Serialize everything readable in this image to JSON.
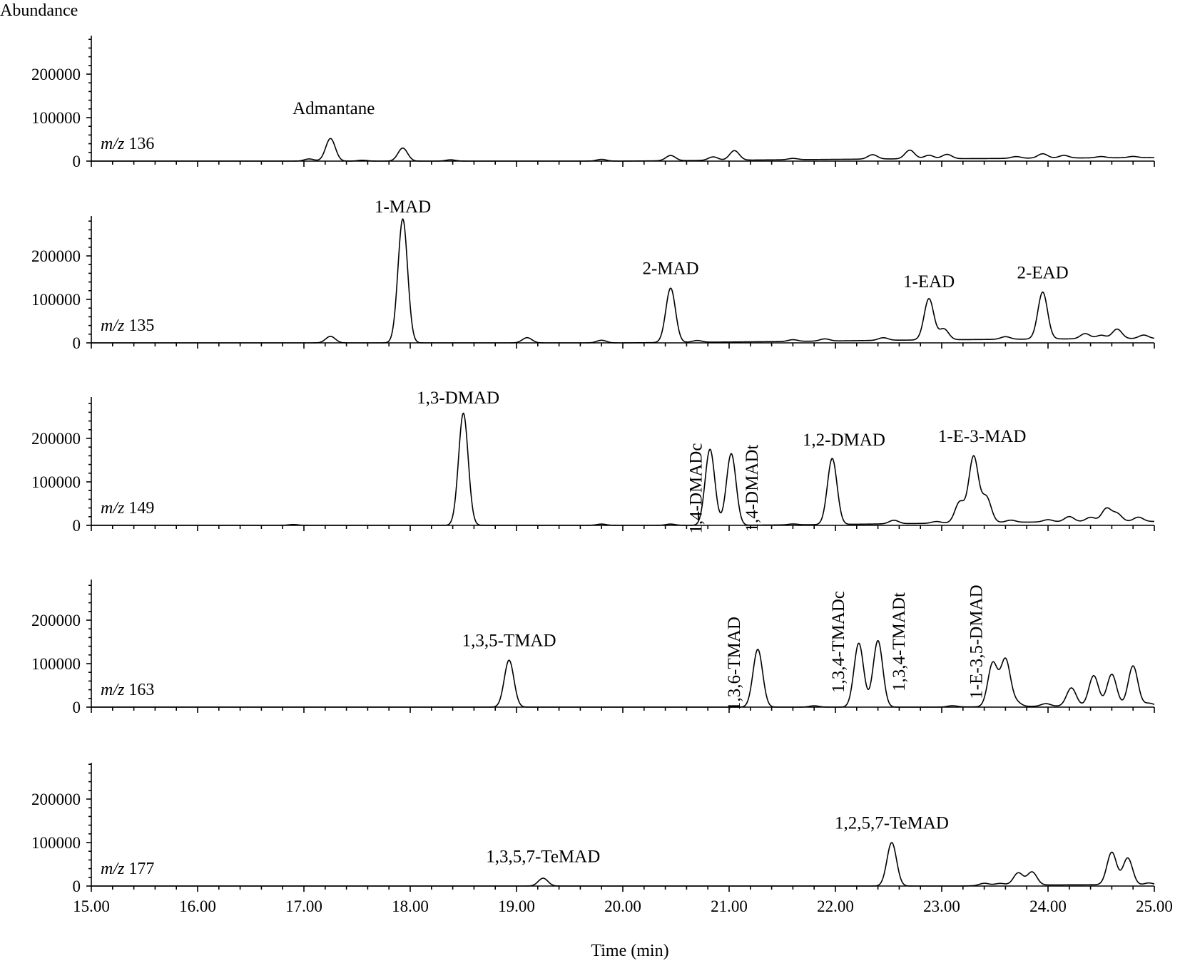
{
  "chart_data": {
    "type": "line",
    "ylabel": "Abundance",
    "xlabel": "Time (min)",
    "xlim": [
      15.0,
      25.0
    ],
    "x_ticks": [
      "15.00",
      "16.00",
      "17.00",
      "18.00",
      "19.00",
      "20.00",
      "21.00",
      "22.00",
      "23.00",
      "24.00",
      "25.00"
    ],
    "y_ticks": [
      "0",
      "100000",
      "200000"
    ],
    "ylim": [
      0,
      290000
    ],
    "peak_width_min": 0.045,
    "panels": [
      {
        "mz_prefix": "m/z",
        "mz_value": "136",
        "baseline": [
          [
            15.0,
            0
          ],
          [
            20.0,
            0
          ],
          [
            21.5,
            3000
          ],
          [
            22.5,
            5000
          ],
          [
            23.5,
            6000
          ],
          [
            24.0,
            7000
          ],
          [
            25.0,
            8000
          ]
        ],
        "peaks": [
          {
            "x": 17.05,
            "y": 5000,
            "label": ""
          },
          {
            "x": 17.25,
            "y": 52000,
            "label": "Admantane",
            "label_orient": "h",
            "label_x": 17.28,
            "label_y": 108000
          },
          {
            "x": 17.55,
            "y": 2000,
            "label": ""
          },
          {
            "x": 17.93,
            "y": 30000,
            "label": ""
          },
          {
            "x": 18.38,
            "y": 3000,
            "label": ""
          },
          {
            "x": 19.8,
            "y": 4000,
            "label": ""
          },
          {
            "x": 20.45,
            "y": 12000,
            "label": ""
          },
          {
            "x": 20.85,
            "y": 8000,
            "label": ""
          },
          {
            "x": 21.05,
            "y": 22000,
            "label": ""
          },
          {
            "x": 21.6,
            "y": 3000,
            "label": ""
          },
          {
            "x": 22.35,
            "y": 10000,
            "label": ""
          },
          {
            "x": 22.7,
            "y": 20000,
            "label": ""
          },
          {
            "x": 22.88,
            "y": 8000,
            "label": ""
          },
          {
            "x": 23.05,
            "y": 10000,
            "label": ""
          },
          {
            "x": 23.7,
            "y": 4000,
            "label": ""
          },
          {
            "x": 23.95,
            "y": 10000,
            "label": ""
          },
          {
            "x": 24.15,
            "y": 6000,
            "label": ""
          },
          {
            "x": 24.5,
            "y": 3000,
            "label": ""
          },
          {
            "x": 24.8,
            "y": 3000,
            "label": ""
          }
        ]
      },
      {
        "mz_prefix": "m/z",
        "mz_value": "135",
        "baseline": [
          [
            15.0,
            0
          ],
          [
            20.0,
            0
          ],
          [
            21.5,
            3000
          ],
          [
            22.5,
            6000
          ],
          [
            23.5,
            8000
          ],
          [
            24.0,
            9000
          ],
          [
            25.0,
            10000
          ]
        ],
        "peaks": [
          {
            "x": 17.25,
            "y": 15000,
            "label": ""
          },
          {
            "x": 17.93,
            "y": 285000,
            "label": "1-MAD",
            "label_orient": "h",
            "label_x": 17.93,
            "label_y": 300000
          },
          {
            "x": 19.1,
            "y": 12000,
            "label": ""
          },
          {
            "x": 19.8,
            "y": 6000,
            "label": ""
          },
          {
            "x": 20.45,
            "y": 125000,
            "label": "2-MAD",
            "label_orient": "h",
            "label_x": 20.45,
            "label_y": 158000
          },
          {
            "x": 20.7,
            "y": 4000,
            "label": ""
          },
          {
            "x": 21.6,
            "y": 4000,
            "label": ""
          },
          {
            "x": 21.9,
            "y": 5000,
            "label": ""
          },
          {
            "x": 22.45,
            "y": 6000,
            "label": ""
          },
          {
            "x": 22.88,
            "y": 95000,
            "label": "1-EAD",
            "label_orient": "h",
            "label_x": 22.88,
            "label_y": 128000
          },
          {
            "x": 23.02,
            "y": 25000,
            "label": ""
          },
          {
            "x": 23.6,
            "y": 6000,
            "label": ""
          },
          {
            "x": 23.95,
            "y": 108000,
            "label": "2-EAD",
            "label_orient": "h",
            "label_x": 23.95,
            "label_y": 148000
          },
          {
            "x": 24.35,
            "y": 12000,
            "label": ""
          },
          {
            "x": 24.5,
            "y": 8000,
            "label": ""
          },
          {
            "x": 24.65,
            "y": 22000,
            "label": ""
          },
          {
            "x": 24.9,
            "y": 8000,
            "label": ""
          }
        ]
      },
      {
        "mz_prefix": "m/z",
        "mz_value": "149",
        "baseline": [
          [
            15.0,
            0
          ],
          [
            21.0,
            0
          ],
          [
            22.0,
            2000
          ],
          [
            23.0,
            5000
          ],
          [
            24.0,
            8000
          ],
          [
            25.0,
            9000
          ]
        ],
        "peaks": [
          {
            "x": 16.9,
            "y": 2000,
            "label": ""
          },
          {
            "x": 18.5,
            "y": 258000,
            "label": "1,3-DMAD",
            "label_orient": "h",
            "label_x": 18.45,
            "label_y": 280000
          },
          {
            "x": 19.8,
            "y": 3000,
            "label": ""
          },
          {
            "x": 20.45,
            "y": 3000,
            "label": ""
          },
          {
            "x": 20.82,
            "y": 175000,
            "label": "1,4-DMADc",
            "label_orient": "v",
            "label_x": 20.74,
            "label_y": 85000
          },
          {
            "x": 21.02,
            "y": 165000,
            "label": "1,4-DMADt",
            "label_orient": "v",
            "label_x": 21.27,
            "label_y": 85000
          },
          {
            "x": 21.6,
            "y": 2000,
            "label": ""
          },
          {
            "x": 21.97,
            "y": 152000,
            "label": "1,2-DMAD",
            "label_orient": "h",
            "label_x": 22.08,
            "label_y": 184000
          },
          {
            "x": 22.55,
            "y": 8000,
            "label": ""
          },
          {
            "x": 22.95,
            "y": 4000,
            "label": ""
          },
          {
            "x": 23.17,
            "y": 48000,
            "label": ""
          },
          {
            "x": 23.3,
            "y": 152000,
            "label": "1-E-3-MAD",
            "label_orient": "h",
            "label_x": 23.38,
            "label_y": 192000
          },
          {
            "x": 23.42,
            "y": 58000,
            "label": ""
          },
          {
            "x": 23.65,
            "y": 5000,
            "label": ""
          },
          {
            "x": 24.0,
            "y": 5000,
            "label": ""
          },
          {
            "x": 24.2,
            "y": 12000,
            "label": ""
          },
          {
            "x": 24.4,
            "y": 10000,
            "label": ""
          },
          {
            "x": 24.55,
            "y": 30000,
            "label": ""
          },
          {
            "x": 24.65,
            "y": 18000,
            "label": ""
          },
          {
            "x": 24.85,
            "y": 10000,
            "label": ""
          }
        ]
      },
      {
        "mz_prefix": "m/z",
        "mz_value": "163",
        "baseline": [
          [
            15.0,
            0
          ],
          [
            23.0,
            0
          ],
          [
            24.0,
            2000
          ],
          [
            25.0,
            3000
          ]
        ],
        "peaks": [
          {
            "x": 18.93,
            "y": 108000,
            "label": "1,3,5-TMAD",
            "label_orient": "h",
            "label_x": 18.93,
            "label_y": 140000
          },
          {
            "x": 21.27,
            "y": 133000,
            "label": "1,3,6-TMAD",
            "label_orient": "v",
            "label_x": 21.1,
            "label_y": 100000
          },
          {
            "x": 21.8,
            "y": 3000,
            "label": ""
          },
          {
            "x": 22.22,
            "y": 147000,
            "label": "1,3,4-TMADc",
            "label_orient": "v",
            "label_x": 22.08,
            "label_y": 150000
          },
          {
            "x": 22.4,
            "y": 153000,
            "label": "1,3,4-TMADt",
            "label_orient": "v",
            "label_x": 22.65,
            "label_y": 150000
          },
          {
            "x": 23.1,
            "y": 3000,
            "label": ""
          },
          {
            "x": 23.48,
            "y": 100000,
            "label": "1-E-3,5-DMAD",
            "label_orient": "v",
            "label_x": 23.38,
            "label_y": 150000
          },
          {
            "x": 23.6,
            "y": 108000,
            "label": ""
          },
          {
            "x": 23.7,
            "y": 10000,
            "label": ""
          },
          {
            "x": 23.98,
            "y": 6000,
            "label": ""
          },
          {
            "x": 24.22,
            "y": 42000,
            "label": ""
          },
          {
            "x": 24.43,
            "y": 70000,
            "label": ""
          },
          {
            "x": 24.6,
            "y": 73000,
            "label": ""
          },
          {
            "x": 24.8,
            "y": 92000,
            "label": ""
          },
          {
            "x": 24.95,
            "y": 6000,
            "label": ""
          }
        ]
      },
      {
        "mz_prefix": "m/z",
        "mz_value": "177",
        "baseline": [
          [
            15.0,
            0
          ],
          [
            23.2,
            0
          ],
          [
            23.5,
            2000
          ],
          [
            24.5,
            3000
          ],
          [
            25.0,
            2000
          ]
        ],
        "peaks": [
          {
            "x": 19.25,
            "y": 18000,
            "label": "1,3,5,7-TeMAD",
            "label_orient": "h",
            "label_x": 19.25,
            "label_y": 55000
          },
          {
            "x": 22.53,
            "y": 100000,
            "label": "1,2,5,7-TeMAD",
            "label_orient": "h",
            "label_x": 22.53,
            "label_y": 132000
          },
          {
            "x": 23.4,
            "y": 5000,
            "label": ""
          },
          {
            "x": 23.55,
            "y": 4000,
            "label": ""
          },
          {
            "x": 23.72,
            "y": 28000,
            "label": ""
          },
          {
            "x": 23.85,
            "y": 30000,
            "label": ""
          },
          {
            "x": 24.6,
            "y": 75000,
            "label": ""
          },
          {
            "x": 24.75,
            "y": 62000,
            "label": ""
          },
          {
            "x": 24.95,
            "y": 5000,
            "label": ""
          }
        ]
      }
    ]
  }
}
